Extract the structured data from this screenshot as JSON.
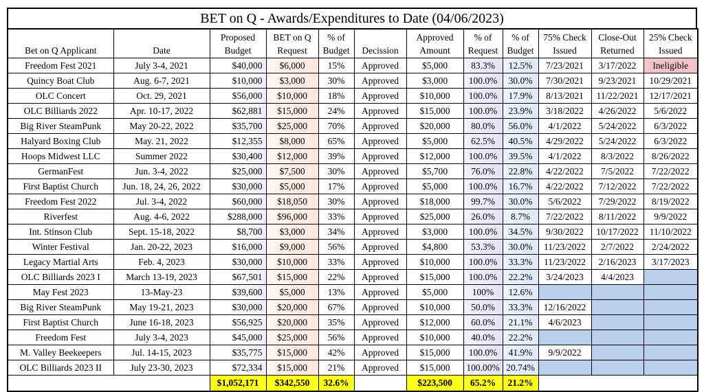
{
  "title": "BET on Q - Awards/Expenditures to Date (04/06/2023)",
  "headers": {
    "applicant": "Bet on Q Applicant",
    "date": "Date",
    "budget_1": "Proposed",
    "budget_2": "Budget",
    "request_1": "BET on Q",
    "request_2": "Request",
    "pct_budget_1": "% of",
    "pct_budget_2": "Budget",
    "decision": "Decission",
    "approved_1": "Approved",
    "approved_2": "Amount",
    "pct_request_1": "% of",
    "pct_request_2": "Request",
    "pct_budget2_1": "% of",
    "pct_budget2_2": "Budget",
    "check75_1": "75% Check",
    "check75_2": "Issued",
    "closeout_1": "Close-Out",
    "closeout_2": "Returned",
    "check25_1": "25% Check",
    "check25_2": "Issued"
  },
  "rows": [
    {
      "applicant": "Freedom Fest 2021",
      "date": "July 3-4, 2021",
      "budget": "$40,000",
      "request": "$6,000",
      "pct_budget": "15%",
      "decision": "Approved",
      "approved": "$5,000",
      "pct_request": "83.3%",
      "pct_budget2": "12.5%",
      "check75": "7/23/2021",
      "closeout": "3/17/2022",
      "check25": "Ineligible"
    },
    {
      "applicant": "Quincy Boat Club",
      "date": "Aug. 6-7, 2021",
      "budget": "$10,000",
      "request": "$3,000",
      "pct_budget": "30%",
      "decision": "Approved",
      "approved": "$3,000",
      "pct_request": "100.0%",
      "pct_budget2": "30.0%",
      "check75": "7/30/2021",
      "closeout": "9/23/2021",
      "check25": "10/29/2021"
    },
    {
      "applicant": "OLC Concert",
      "date": "Oct. 29, 2021",
      "budget": "$56,000",
      "request": "$10,000",
      "pct_budget": "18%",
      "decision": "Approved",
      "approved": "$10,000",
      "pct_request": "100.0%",
      "pct_budget2": "17.9%",
      "check75": "8/13/2021",
      "closeout": "11/22/2021",
      "check25": "12/17/2021"
    },
    {
      "applicant": "OLC Billiards 2022",
      "date": "Apr. 10-17, 2022",
      "budget": "$62,881",
      "request": "$15,000",
      "pct_budget": "24%",
      "decision": "Approved",
      "approved": "$15,000",
      "pct_request": "100.0%",
      "pct_budget2": "23.9%",
      "check75": "3/18/2022",
      "closeout": "4/26/2022",
      "check25": "5/6/2022"
    },
    {
      "applicant": "Big River SteamPunk",
      "date": "May 20-22, 2022",
      "budget": "$35,700",
      "request": "$25,000",
      "pct_budget": "70%",
      "decision": "Approved",
      "approved": "$20,000",
      "pct_request": "80.0%",
      "pct_budget2": "56.0%",
      "check75": "4/1/2022",
      "closeout": "5/24/2022",
      "check25": "6/3/2022"
    },
    {
      "applicant": "Halyard Boxing Club",
      "date": "May. 21, 2022",
      "budget": "$12,355",
      "request": "$8,000",
      "pct_budget": "65%",
      "decision": "Approved",
      "approved": "$5,000",
      "pct_request": "62.5%",
      "pct_budget2": "40.5%",
      "check75": "4/29/2022",
      "closeout": "5/24/2022",
      "check25": "6/3/2022"
    },
    {
      "applicant": "Hoops Midwest LLC",
      "date": "Summer 2022",
      "budget": "$30,400",
      "request": "$12,000",
      "pct_budget": "39%",
      "decision": "Approved",
      "approved": "$12,000",
      "pct_request": "100.0%",
      "pct_budget2": "39.5%",
      "check75": "4/1/2022",
      "closeout": "8/3/2022",
      "check25": "8/26/2022"
    },
    {
      "applicant": "GermanFest",
      "date": "Jun. 3-4, 2022",
      "budget": "$25,000",
      "request": "$7,500",
      "pct_budget": "30%",
      "decision": "Approved",
      "approved": "$5,700",
      "pct_request": "76.0%",
      "pct_budget2": "22.8%",
      "check75": "4/22/2022",
      "closeout": "7/5/2022",
      "check25": "7/22/2022"
    },
    {
      "applicant": "First Baptist Church",
      "date": "Jun. 18, 24, 26, 2022",
      "budget": "$30,000",
      "request": "$5,000",
      "pct_budget": "17%",
      "decision": "Approved",
      "approved": "$5,000",
      "pct_request": "100.0%",
      "pct_budget2": "16.7%",
      "check75": "4/22/2022",
      "closeout": "7/12/2022",
      "check25": "7/22/2022"
    },
    {
      "applicant": "Freedom Fest 2022",
      "date": "Jul. 3-4, 2022",
      "budget": "$60,000",
      "request": "$18,050",
      "pct_budget": "30%",
      "decision": "Approved",
      "approved": "$18,000",
      "pct_request": "99.7%",
      "pct_budget2": "30.0%",
      "check75": "5/6/2022",
      "closeout": "7/29/2022",
      "check25": "8/19/2022"
    },
    {
      "applicant": "Riverfest",
      "date": "Aug. 4-6, 2022",
      "budget": "$288,000",
      "request": "$96,000",
      "pct_budget": "33%",
      "decision": "Approved",
      "approved": "$25,000",
      "pct_request": "26.0%",
      "pct_budget2": "8.7%",
      "check75": "7/22/2022",
      "closeout": "8/11/2022",
      "check25": "9/9/2022"
    },
    {
      "applicant": "Int. Stinson Club",
      "date": "Sept. 15-18, 2022",
      "budget": "$8,700",
      "request": "$3,000",
      "pct_budget": "34%",
      "decision": "Approved",
      "approved": "$3,000",
      "pct_request": "100.0%",
      "pct_budget2": "34.5%",
      "check75": "9/30/2022",
      "closeout": "10/17/2022",
      "check25": "11/10/2022"
    },
    {
      "applicant": "Winter Festival",
      "date": "Jan. 20-22, 2023",
      "budget": "$16,000",
      "request": "$9,000",
      "pct_budget": "56%",
      "decision": "Approved",
      "approved": "$4,800",
      "pct_request": "53.3%",
      "pct_budget2": "30.0%",
      "check75": "11/23/2022",
      "closeout": "2/7/2022",
      "check25": "2/24/2022"
    },
    {
      "applicant": "Legacy Martial Arts",
      "date": "Feb. 4, 2023",
      "budget": "$30,000",
      "request": "$10,000",
      "pct_budget": "33%",
      "decision": "Approved",
      "approved": "$10,000",
      "pct_request": "100.0%",
      "pct_budget2": "33.3%",
      "check75": "11/23/2022",
      "closeout": "2/16/2023",
      "check25": "3/17/2023"
    },
    {
      "applicant": "OLC Billiards 2023 I",
      "date": "March 13-19, 2023",
      "budget": "$67,501",
      "request": "$15,000",
      "pct_budget": "22%",
      "decision": "Approved",
      "approved": "$15,000",
      "pct_request": "100.0%",
      "pct_budget2": "22.2%",
      "check75": "3/24/2023",
      "closeout": "4/4/2023",
      "check25": ""
    },
    {
      "applicant": "May Fest 2023",
      "date": "13-May-23",
      "budget": "$39,600",
      "request": "$5,000",
      "pct_budget": "13%",
      "decision": "Approved",
      "approved": "$5,000",
      "pct_request": "100%",
      "pct_budget2": "12.6%",
      "check75": "",
      "closeout": "",
      "check25": ""
    },
    {
      "applicant": "Big River SteamPunk",
      "date": "May 19-21, 2023",
      "budget": "$30,000",
      "request": "$20,000",
      "pct_budget": "67%",
      "decision": "Approved",
      "approved": "$10,000",
      "pct_request": "50.0%",
      "pct_budget2": "33.3%",
      "check75": "12/16/2022",
      "closeout": "",
      "check25": ""
    },
    {
      "applicant": "First Baptist Church",
      "date": "June 16-18, 2023",
      "budget": "$56,925",
      "request": "$20,000",
      "pct_budget": "35%",
      "decision": "Approved",
      "approved": "$12,000",
      "pct_request": "60.0%",
      "pct_budget2": "21.1%",
      "check75": "4/6/2023",
      "closeout": "",
      "check25": ""
    },
    {
      "applicant": "Freedom Fest",
      "date": "July 3-4, 2023",
      "budget": "$45,000",
      "request": "$25,000",
      "pct_budget": "56%",
      "decision": "Approved",
      "approved": "$10,000",
      "pct_request": "40.0%",
      "pct_budget2": "22.2%",
      "check75": "",
      "closeout": "",
      "check25": ""
    },
    {
      "applicant": "M. Valley Beekeepers",
      "date": "Jul. 14-15, 2023",
      "budget": "$35,775",
      "request": "$15,000",
      "pct_budget": "42%",
      "decision": "Approved",
      "approved": "$15,000",
      "pct_request": "100.0%",
      "pct_budget2": "41.9%",
      "check75": "9/9/2022",
      "closeout": "",
      "check25": ""
    },
    {
      "applicant": "OLC Billiards 2023 II",
      "date": "July 23-30, 2023",
      "budget": "$72,334",
      "request": "$15,000",
      "pct_budget": "21%",
      "decision": "Approved",
      "approved": "$15,000",
      "pct_request": "100.00%",
      "pct_budget2": "20.74%",
      "check75": "",
      "closeout": "",
      "check25": ""
    }
  ],
  "totals": {
    "budget": "$1,052,171",
    "request": "$342,550",
    "pct_budget": "32.6%",
    "approved": "$223,500",
    "pct_request": "65.2%",
    "pct_budget2": "21.2%"
  },
  "colors": {
    "highlight_total": "#ffff1e",
    "ineligible": "#f2c3c9",
    "pending": "#b9d1ee"
  }
}
